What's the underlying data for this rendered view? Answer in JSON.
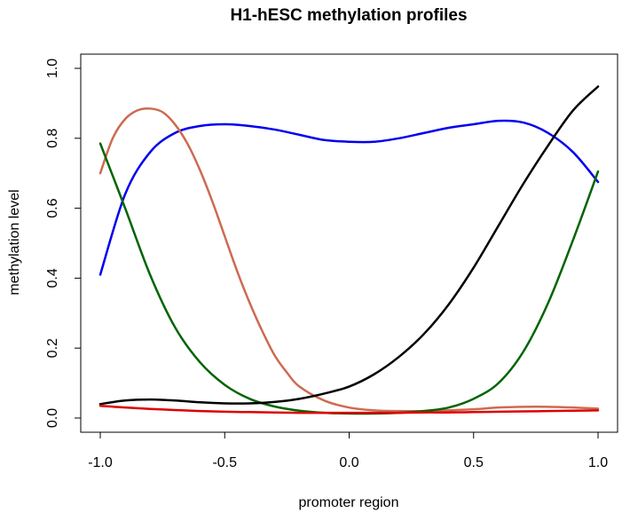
{
  "chart_data": {
    "type": "line",
    "title": "H1-hESC methylation profiles",
    "xlabel": "promoter region",
    "ylabel": "methylation level",
    "xlim": [
      -1.0,
      1.0
    ],
    "ylim": [
      0.0,
      1.0
    ],
    "x_ticks": [
      "-1.0",
      "-0.5",
      "0.0",
      "0.5",
      "1.0"
    ],
    "y_ticks": [
      "0.0",
      "0.2",
      "0.4",
      "0.6",
      "0.8",
      "1.0"
    ],
    "legend": "none",
    "grid": false,
    "series": [
      {
        "color": "#0000ee",
        "x": [
          -1.0,
          -0.9,
          -0.8,
          -0.7,
          -0.6,
          -0.5,
          -0.4,
          -0.3,
          -0.2,
          -0.1,
          0.0,
          0.1,
          0.2,
          0.3,
          0.4,
          0.5,
          0.6,
          0.7,
          0.8,
          0.9,
          1.0
        ],
        "y": [
          0.41,
          0.64,
          0.76,
          0.815,
          0.835,
          0.84,
          0.835,
          0.825,
          0.81,
          0.795,
          0.79,
          0.79,
          0.8,
          0.815,
          0.83,
          0.84,
          0.85,
          0.845,
          0.815,
          0.76,
          0.675
        ]
      },
      {
        "color": "#cd6a52",
        "x": [
          -1.0,
          -0.95,
          -0.9,
          -0.85,
          -0.8,
          -0.75,
          -0.7,
          -0.65,
          -0.6,
          -0.55,
          -0.5,
          -0.45,
          -0.4,
          -0.35,
          -0.3,
          -0.25,
          -0.2,
          -0.1,
          0.0,
          0.1,
          0.2,
          0.3,
          0.4,
          0.5,
          0.6,
          0.7,
          0.8,
          0.9,
          1.0
        ],
        "y": [
          0.7,
          0.8,
          0.855,
          0.88,
          0.885,
          0.875,
          0.84,
          0.785,
          0.71,
          0.62,
          0.52,
          0.42,
          0.33,
          0.25,
          0.18,
          0.13,
          0.09,
          0.05,
          0.03,
          0.022,
          0.02,
          0.02,
          0.022,
          0.025,
          0.03,
          0.032,
          0.032,
          0.03,
          0.027
        ]
      },
      {
        "color": "#006400",
        "x": [
          -1.0,
          -0.9,
          -0.8,
          -0.7,
          -0.6,
          -0.5,
          -0.4,
          -0.3,
          -0.2,
          -0.1,
          0.0,
          0.1,
          0.2,
          0.3,
          0.4,
          0.5,
          0.6,
          0.7,
          0.8,
          0.9,
          1.0
        ],
        "y": [
          0.785,
          0.6,
          0.41,
          0.26,
          0.16,
          0.095,
          0.055,
          0.033,
          0.021,
          0.015,
          0.013,
          0.013,
          0.015,
          0.02,
          0.03,
          0.055,
          0.1,
          0.19,
          0.33,
          0.51,
          0.705
        ]
      },
      {
        "color": "#000000",
        "x": [
          -1.0,
          -0.9,
          -0.8,
          -0.7,
          -0.6,
          -0.5,
          -0.4,
          -0.3,
          -0.2,
          -0.1,
          0.0,
          0.1,
          0.2,
          0.3,
          0.4,
          0.5,
          0.6,
          0.7,
          0.8,
          0.9,
          1.0
        ],
        "y": [
          0.04,
          0.05,
          0.053,
          0.05,
          0.045,
          0.042,
          0.042,
          0.046,
          0.055,
          0.07,
          0.09,
          0.125,
          0.175,
          0.24,
          0.325,
          0.43,
          0.55,
          0.67,
          0.78,
          0.88,
          0.948
        ]
      },
      {
        "color": "#dd0000",
        "x": [
          -1.0,
          -0.9,
          -0.8,
          -0.7,
          -0.6,
          -0.5,
          -0.4,
          -0.3,
          -0.2,
          -0.1,
          0.0,
          0.1,
          0.2,
          0.3,
          0.4,
          0.5,
          0.6,
          0.7,
          0.8,
          0.9,
          1.0
        ],
        "y": [
          0.035,
          0.03,
          0.026,
          0.023,
          0.02,
          0.018,
          0.017,
          0.016,
          0.015,
          0.015,
          0.015,
          0.015,
          0.015,
          0.016,
          0.016,
          0.017,
          0.018,
          0.019,
          0.02,
          0.021,
          0.022
        ]
      }
    ]
  }
}
